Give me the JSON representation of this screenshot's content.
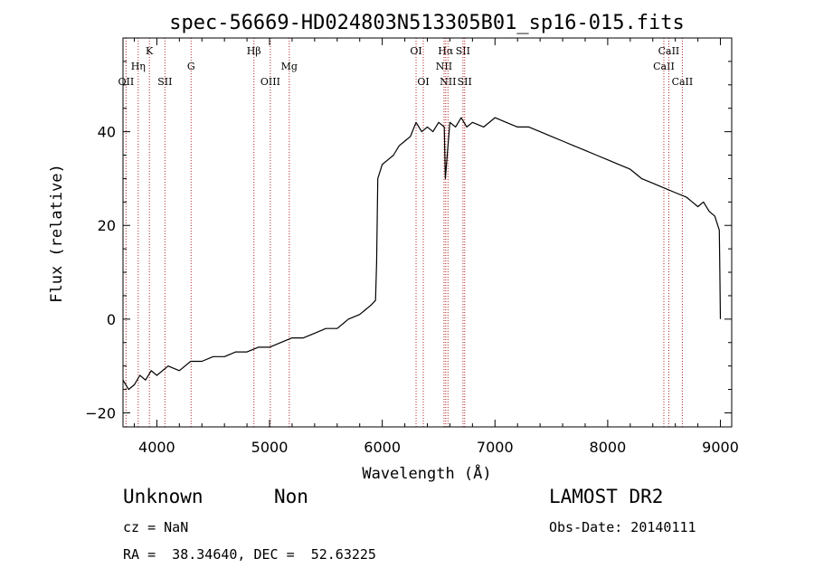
{
  "chart_data": {
    "type": "line",
    "title": "spec-56669-HD024803N513305B01_sp16-015.fits",
    "xlabel": "Wavelength (Å)",
    "ylabel": "Flux (relative)",
    "xlim": [
      3700,
      9100
    ],
    "ylim": [
      -23,
      60
    ],
    "xticks": [
      4000,
      5000,
      6000,
      7000,
      8000,
      9000
    ],
    "yticks": [
      -20,
      0,
      20,
      40
    ],
    "series": [
      {
        "x": [
          3700,
          3750,
          3800,
          3850,
          3900,
          3950,
          4000,
          4100,
          4200,
          4300,
          4400,
          4500,
          4600,
          4700,
          4800,
          4900,
          5000,
          5100,
          5200,
          5300,
          5400,
          5500,
          5600,
          5700,
          5800,
          5850,
          5900,
          5940,
          5950,
          5960,
          6000,
          6050,
          6100,
          6150,
          6200,
          6250,
          6300,
          6350,
          6400,
          6450,
          6500,
          6550,
          6560,
          6600,
          6650,
          6700,
          6750,
          6800,
          6900,
          7000,
          7100,
          7200,
          7300,
          7400,
          7500,
          7600,
          7700,
          7800,
          7900,
          8000,
          8100,
          8200,
          8300,
          8400,
          8500,
          8600,
          8700,
          8750,
          8800,
          8850,
          8900,
          8950,
          8990,
          8995,
          9000
        ],
        "y": [
          -13,
          -15,
          -14,
          -12,
          -13,
          -11,
          -12,
          -10,
          -11,
          -9,
          -9,
          -8,
          -8,
          -7,
          -7,
          -6,
          -6,
          -5,
          -4,
          -4,
          -3,
          -2,
          -2,
          0,
          1,
          2,
          3,
          4,
          12,
          30,
          33,
          34,
          35,
          37,
          38,
          39,
          42,
          40,
          41,
          40,
          42,
          41,
          30,
          42,
          41,
          43,
          41,
          42,
          41,
          43,
          42,
          41,
          41,
          40,
          39,
          38,
          37,
          36,
          35,
          34,
          33,
          32,
          30,
          29,
          28,
          27,
          26,
          25,
          24,
          25,
          23,
          22,
          19,
          10,
          0
        ]
      }
    ],
    "spectral_lines": [
      {
        "name": "OII",
        "wavelength": 3727,
        "row": 3
      },
      {
        "name": "Hη",
        "wavelength": 3835,
        "row": 2
      },
      {
        "name": "K",
        "wavelength": 3934,
        "row": 1
      },
      {
        "name": "SII",
        "wavelength": 4072,
        "row": 3
      },
      {
        "name": "G",
        "wavelength": 4304,
        "row": 2
      },
      {
        "name": "Hβ",
        "wavelength": 4861,
        "row": 1
      },
      {
        "name": "OIII",
        "wavelength": 5007,
        "row": 3
      },
      {
        "name": "Mg",
        "wavelength": 5175,
        "row": 2
      },
      {
        "name": "OI",
        "wavelength": 6300,
        "row": 1
      },
      {
        "name": "OI",
        "wavelength": 6364,
        "row": 3
      },
      {
        "name": "Hα",
        "wavelength": 6563,
        "row": 1
      },
      {
        "name": "NII",
        "wavelength": 6548,
        "row": 2
      },
      {
        "name": "NII",
        "wavelength": 6583,
        "row": 3
      },
      {
        "name": "SII",
        "wavelength": 6716,
        "row": 1
      },
      {
        "name": "SII",
        "wavelength": 6731,
        "row": 3
      },
      {
        "name": "CaII",
        "wavelength": 8498,
        "row": 2
      },
      {
        "name": "CaII",
        "wavelength": 8542,
        "row": 1
      },
      {
        "name": "CaII",
        "wavelength": 8662,
        "row": 3
      }
    ],
    "colors": {
      "spectrum": "#000000",
      "line_markers": "#b22222"
    }
  },
  "info": {
    "class": "Unknown",
    "subclass": "Non",
    "survey": "LAMOST DR2",
    "cz": "cz = NaN",
    "obs_date": "Obs-Date: 20140111",
    "coords": "RA =  38.34640, DEC =  52.63225"
  }
}
